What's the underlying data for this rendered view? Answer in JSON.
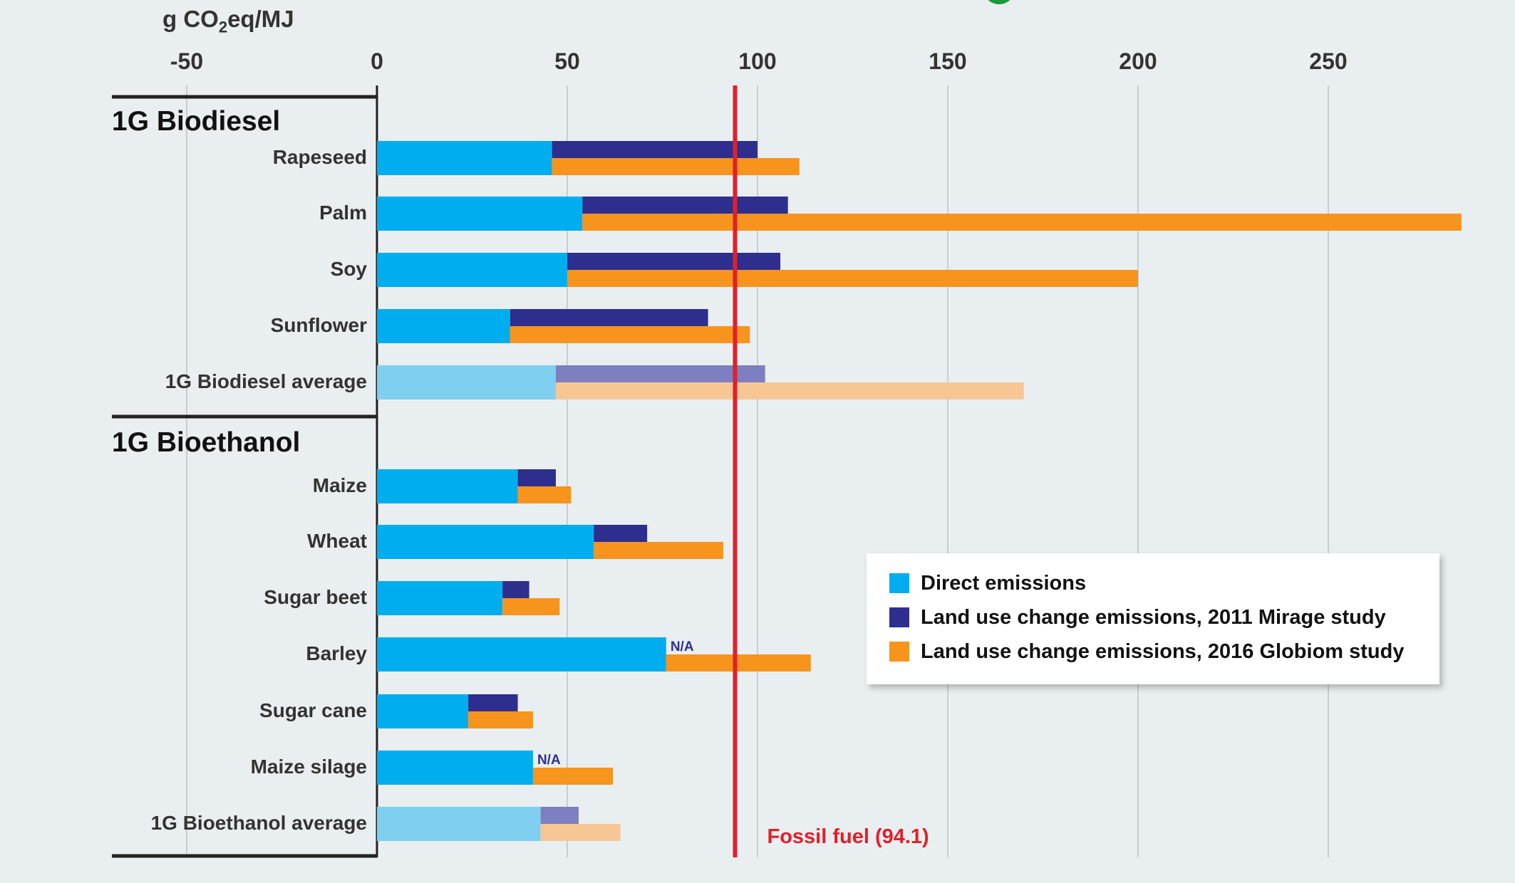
{
  "unit_label": {
    "prefix": "g CO",
    "sub": "2",
    "suffix": "eq/MJ"
  },
  "colors": {
    "direct": "#00aeef",
    "mirage": "#2e2e8f",
    "globiom": "#f7941d",
    "direct_avg": "#7ecff0",
    "mirage_avg": "#7d7fc0",
    "globiom_avg": "#f6c795",
    "fossil": "#e0202a"
  },
  "legend": [
    {
      "key": "direct",
      "label": "Direct emissions"
    },
    {
      "key": "mirage",
      "label": "Land use change emissions, 2011 Mirage study"
    },
    {
      "key": "globiom",
      "label": "Land use change emissions, 2016 Globiom study"
    }
  ],
  "chart_data": {
    "type": "bar",
    "orientation": "horizontal",
    "stacked": true,
    "title": "",
    "xlabel": "g CO2eq/MJ",
    "xlim": [
      -50,
      290
    ],
    "xticks": [
      -50,
      0,
      50,
      100,
      150,
      200,
      250
    ],
    "grid": true,
    "legend_position": "bottom-right",
    "reference_line": {
      "value": 94.1,
      "label": "Fossil fuel (94.1)"
    },
    "groups": [
      {
        "name": "1G Biodiesel",
        "items": [
          {
            "label": "Rapeseed",
            "direct": 46,
            "mirage_total": 100,
            "globiom_total": 111
          },
          {
            "label": "Palm",
            "direct": 54,
            "mirage_total": 108,
            "globiom_total": 285
          },
          {
            "label": "Soy",
            "direct": 50,
            "mirage_total": 106,
            "globiom_total": 200
          },
          {
            "label": "Sunflower",
            "direct": 35,
            "mirage_total": 87,
            "globiom_total": 98
          },
          {
            "label": "1G Biodiesel average",
            "direct": 47,
            "mirage_total": 102,
            "globiom_total": 170,
            "average": true
          }
        ]
      },
      {
        "name": "1G Bioethanol",
        "items": [
          {
            "label": "Maize",
            "direct": 37,
            "mirage_total": 47,
            "globiom_total": 51
          },
          {
            "label": "Wheat",
            "direct": 57,
            "mirage_total": 71,
            "globiom_total": 91
          },
          {
            "label": "Sugar beet",
            "direct": 33,
            "mirage_total": 40,
            "globiom_total": 48
          },
          {
            "label": "Barley",
            "direct": 76,
            "mirage_total": null,
            "mirage_note": "N/A",
            "globiom_total": 114
          },
          {
            "label": "Sugar cane",
            "direct": 24,
            "mirage_total": 37,
            "globiom_total": 41
          },
          {
            "label": "Maize silage",
            "direct": 41,
            "mirage_total": null,
            "mirage_note": "N/A",
            "globiom_total": 62
          },
          {
            "label": "1G Bioethanol average",
            "direct": 43,
            "mirage_total": 53,
            "globiom_total": 64,
            "average": true
          }
        ]
      }
    ]
  }
}
